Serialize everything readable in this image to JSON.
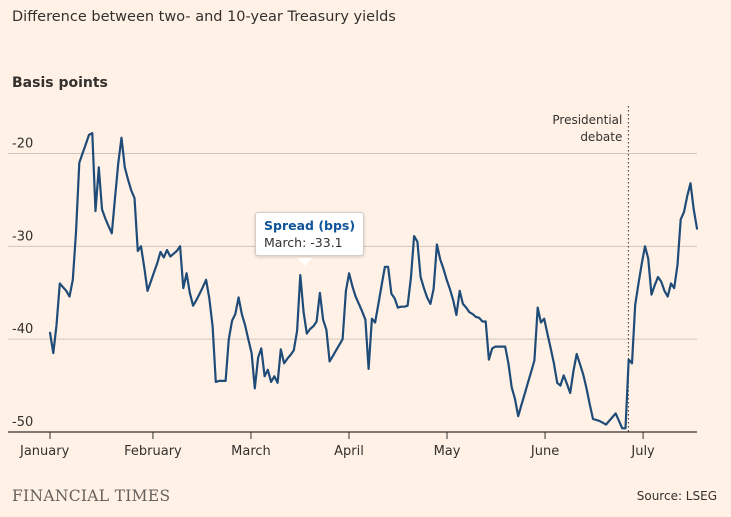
{
  "header": {
    "title": "Difference between two- and 10-year Treasury yields",
    "subtitle": "Basis points"
  },
  "footer": {
    "brand": "FINANCIAL TIMES",
    "source": "Source: LSEG"
  },
  "colors": {
    "background": "#fff1e5",
    "line": "#1f4b78",
    "grid": "#d2c5bb",
    "axis": "#33302e",
    "tooltip_title": "#0f5499"
  },
  "tooltip": {
    "title": "Spread (bps)",
    "value": "March: -33.1"
  },
  "chart_data": {
    "type": "line",
    "title": "Difference between two- and 10-year Treasury yields",
    "ylabel": "Basis points",
    "xlabel": "",
    "ylim": [
      -50,
      -15
    ],
    "yticks": [
      -20,
      -30,
      -40,
      -50
    ],
    "xlim": [
      0,
      132
    ],
    "xtick_labels": [
      "January",
      "February",
      "March",
      "April",
      "May",
      "June",
      "July"
    ],
    "xtick_positions": [
      0,
      21,
      41,
      61,
      81,
      101,
      121
    ],
    "grid": "horizontal",
    "annotation": {
      "text": "Presidential debate",
      "lines": [
        "Presidential",
        "debate"
      ],
      "x": 118,
      "style": "dotted vertical line"
    },
    "series": [
      {
        "values": [
          -39.3,
          -41.5,
          -38.5,
          -34,
          -34.4,
          -34.8,
          -35.4,
          -33.6,
          -28.5,
          -21,
          -20,
          -19,
          -18,
          -17.8,
          -26.2,
          -21.5,
          -26.0,
          -27,
          -27.8,
          -28.6,
          -24.8,
          -21,
          -18.3,
          -21.5,
          -22.8,
          -24,
          -24.8,
          -30.5,
          -30,
          -32.3,
          -34.8,
          -33.8,
          -32.8,
          -31.8,
          -30.6,
          -31.2,
          -30.4,
          -31.1,
          -30.8,
          -30.5,
          -30,
          -34.5,
          -32.9,
          -35,
          -36.4,
          -35.8,
          -35.1,
          -34.4,
          -33.6,
          -35.6,
          -38.6,
          -44.6,
          -44.5,
          -44.5,
          -44.5,
          -40,
          -38,
          -37.3,
          -35.5,
          -37.3,
          -38.5,
          -40,
          -41.5,
          -45.3,
          -42,
          -41,
          -44,
          -43.3,
          -44.6,
          -44,
          -44.7,
          -41.1,
          -42.6,
          -42.1,
          -41.7,
          -41.2,
          -39.1,
          -33.1,
          -37.1,
          -39.4,
          -38.9,
          -38.6,
          -38.1,
          -35,
          -37.9,
          -39,
          -42.4,
          -41.8,
          -41.2,
          -40.6,
          -40,
          -34.8,
          -32.9,
          -34.3,
          -35.4,
          -36.2,
          -37,
          -37.9,
          -43.2,
          -37.8,
          -38.2,
          -36.2,
          -34.2,
          -32.2,
          -32.2,
          -35.1,
          -35.6,
          -36.6,
          -36.5,
          -36.5,
          -36.4,
          -33.4,
          -28.9,
          -29.5,
          -33.3,
          -34.5,
          -35.5,
          -36.2,
          -34.6,
          -29.8,
          -31.4,
          -32.4,
          -33.6,
          -34.6,
          -35.8,
          -37.4,
          -34.8,
          -36.2,
          -36.6,
          -37.1,
          -37.3,
          -37.6,
          -37.7,
          -38.1,
          -38.1,
          -42.2,
          -41,
          -40.8,
          -40.8,
          -40.8,
          -40.8,
          -42.6,
          -45.2,
          -46.4,
          -48.3,
          -47.1,
          -45.9,
          -44.7,
          -43.5,
          -42.3,
          -36.6,
          -38.2,
          -37.8,
          -39.4,
          -41,
          -42.6,
          -44.7,
          -45,
          -43.9,
          -44.8,
          -45.8,
          -43.4,
          -41.6,
          -42.7,
          -43.8,
          -45.3,
          -47,
          -48.6,
          -48.7,
          -48.8,
          -49.0,
          -49.2,
          -48.8,
          -48.4,
          -48.0,
          -48.8,
          -49.6,
          -49.6,
          -42.2,
          -42.6,
          -36.3,
          -34,
          -31.9,
          -30,
          -31.3,
          -35.2,
          -34.2,
          -33.3,
          -33.8,
          -34.8,
          -35.4,
          -34,
          -34.5,
          -32,
          -27.1,
          -26.3,
          -24.6,
          -23.2,
          -26,
          -28.1
        ],
        "x_start": 0,
        "x_end": 132
      }
    ]
  }
}
